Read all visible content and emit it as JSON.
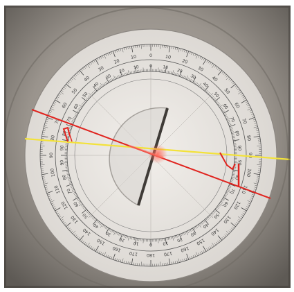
{
  "scene": {
    "description_labels": {
      "outer_scale_values": [
        "0",
        "10",
        "20",
        "30",
        "40",
        "50",
        "60",
        "70",
        "80",
        "90",
        "100",
        "110",
        "120",
        "130",
        "140",
        "150",
        "160",
        "170",
        "180",
        "170",
        "160",
        "150",
        "140",
        "130",
        "120",
        "110",
        "100",
        "90",
        "80",
        "70",
        "60",
        "50",
        "40",
        "30",
        "20",
        "10"
      ],
      "inner_scale_values": [
        "0",
        "10",
        "20",
        "30",
        "40",
        "50",
        "60",
        "70",
        "80",
        "90",
        "90",
        "80",
        "70",
        "60",
        "50",
        "40",
        "30",
        "20",
        "10",
        "0",
        "10",
        "20",
        "30",
        "40",
        "50",
        "60",
        "70",
        "80",
        "90",
        "90",
        "80",
        "70",
        "60",
        "50",
        "40",
        "30",
        "20",
        "10"
      ]
    },
    "colors": {
      "background_metal": "#8f8a84",
      "protractor_face": "#e9e6e2",
      "scale_ink": "#3a3a3a",
      "laser_red": "#e0231e",
      "normal_line_yellow": "#f3e23a",
      "lens_glass": "#d6d3cf"
    },
    "icons": [
      "protractor-disk",
      "semicircular-lens",
      "laser-beam",
      "normal-line"
    ]
  }
}
